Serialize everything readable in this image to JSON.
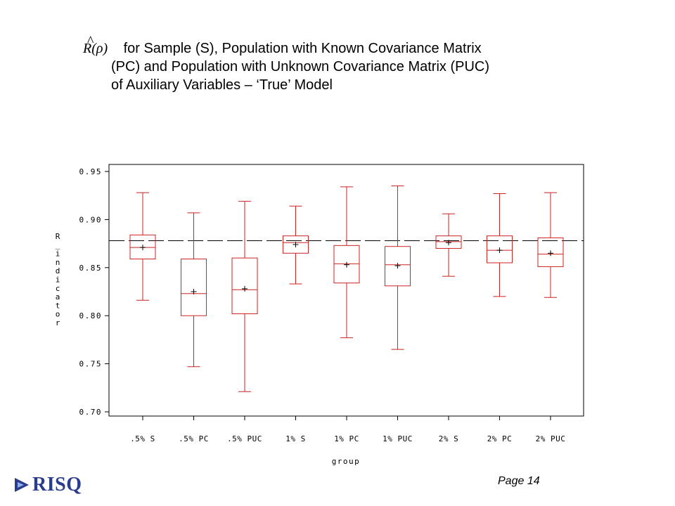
{
  "title": {
    "formula_text": "R(ρ)",
    "line1": "for Sample (S), Population with Known Covariance Matrix",
    "line2": "(PC) and Population with Unknown Covariance Matrix (PUC)",
    "line3": "of Auxiliary Variables – ‘True’ Model"
  },
  "footer": {
    "page": "Page 14",
    "logo_text": "RISQ"
  },
  "colors": {
    "box": "#cc2222",
    "axis": "#000000",
    "reference_line": "#000000",
    "logo": "#2a3c8c"
  },
  "chart_data": {
    "type": "box",
    "xlabel": "group",
    "ylabel": "R_indicator",
    "ylim": [
      0.7,
      0.95
    ],
    "yticks": [
      "0.70",
      "0.75",
      "0.80",
      "0.85",
      "0.90",
      "0.95"
    ],
    "ytick_values": [
      0.7,
      0.75,
      0.8,
      0.85,
      0.9,
      0.95
    ],
    "reference_line": 0.878,
    "grid": false,
    "categories": [
      ".5% S",
      ".5% PC",
      ".5% PUC",
      "1% S",
      "1% PC",
      "1% PUC",
      "2% S",
      "2% PC",
      "2% PUC"
    ],
    "boxes": [
      {
        "min": 0.816,
        "q1": 0.859,
        "median": 0.871,
        "q3": 0.884,
        "max": 0.928,
        "mean": 0.871
      },
      {
        "min": 0.747,
        "q1": 0.8,
        "median": 0.823,
        "q3": 0.859,
        "max": 0.907,
        "mean": 0.825
      },
      {
        "min": 0.721,
        "q1": 0.802,
        "median": 0.827,
        "q3": 0.86,
        "max": 0.919,
        "mean": 0.828
      },
      {
        "min": 0.833,
        "q1": 0.865,
        "median": 0.876,
        "q3": 0.883,
        "max": 0.914,
        "mean": 0.874
      },
      {
        "min": 0.777,
        "q1": 0.834,
        "median": 0.854,
        "q3": 0.873,
        "max": 0.934,
        "mean": 0.853
      },
      {
        "min": 0.765,
        "q1": 0.831,
        "median": 0.853,
        "q3": 0.872,
        "max": 0.935,
        "mean": 0.852
      },
      {
        "min": 0.841,
        "q1": 0.87,
        "median": 0.877,
        "q3": 0.883,
        "max": 0.906,
        "mean": 0.876
      },
      {
        "min": 0.82,
        "q1": 0.855,
        "median": 0.868,
        "q3": 0.883,
        "max": 0.927,
        "mean": 0.868
      },
      {
        "min": 0.819,
        "q1": 0.851,
        "median": 0.864,
        "q3": 0.881,
        "max": 0.928,
        "mean": 0.865
      }
    ]
  }
}
